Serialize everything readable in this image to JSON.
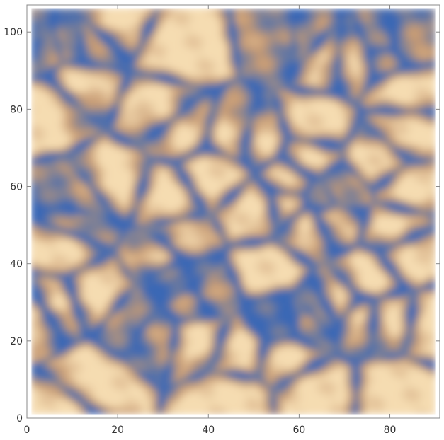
{
  "chart_data": {
    "type": "heatmap",
    "title": "",
    "xlabel": "",
    "ylabel": "",
    "xlim": [
      0,
      91
    ],
    "ylim": [
      0,
      107
    ],
    "data_x_range": [
      1,
      90
    ],
    "data_y_range": [
      1,
      106
    ],
    "x_ticks": [
      0,
      20,
      40,
      60,
      80
    ],
    "y_ticks": [
      0,
      20,
      40,
      60,
      80,
      100
    ],
    "colormap": {
      "low": "#3a67b5",
      "mid": "#c79b74",
      "high": "#f5dcb1"
    },
    "grid": false,
    "frame_color": "#888888"
  }
}
